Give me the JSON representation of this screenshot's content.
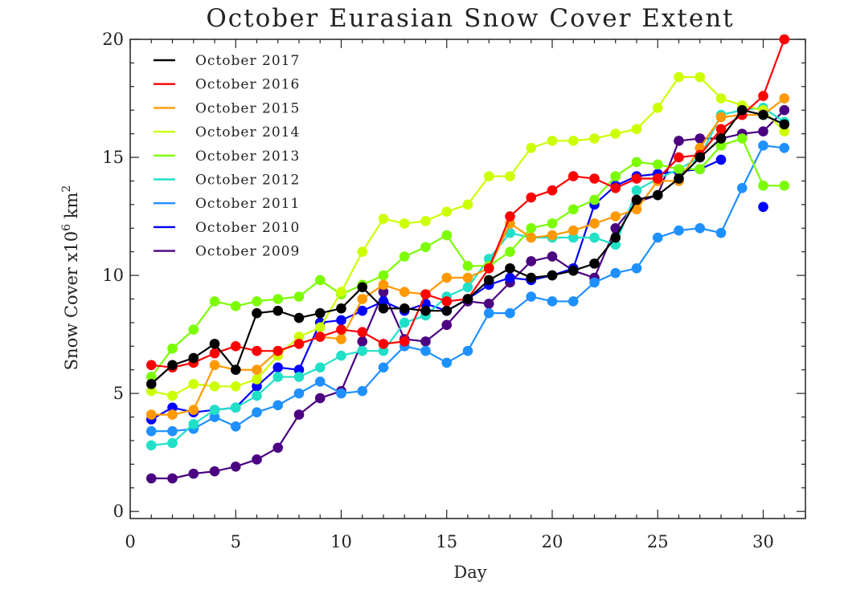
{
  "chart_data": {
    "type": "line",
    "title": "October Eurasian Snow Cover Extent",
    "xlabel": "Day",
    "ylabel_main": "Snow Cover x10",
    "ylabel_sup1": "6",
    "ylabel_unit": " km",
    "ylabel_sup2": "2",
    "xlim": [
      0,
      32
    ],
    "ylim": [
      -0.3,
      20
    ],
    "xticks": [
      0,
      5,
      10,
      15,
      20,
      25,
      30
    ],
    "yticks": [
      0,
      5,
      10,
      15,
      20
    ],
    "legend_position": "top-left",
    "x": [
      1,
      2,
      3,
      4,
      5,
      6,
      7,
      8,
      9,
      10,
      11,
      12,
      13,
      14,
      15,
      16,
      17,
      18,
      19,
      20,
      21,
      22,
      23,
      24,
      25,
      26,
      27,
      28,
      29,
      30,
      31
    ],
    "series": [
      {
        "name": "October 2009",
        "color": "#4b0082",
        "values": [
          1.4,
          1.4,
          1.6,
          1.7,
          1.9,
          2.2,
          2.7,
          4.1,
          4.8,
          5.1,
          7.2,
          9.3,
          7.3,
          7.2,
          7.9,
          8.9,
          8.8,
          9.7,
          10.6,
          10.8,
          10.2,
          9.9,
          12.0,
          13.1,
          13.4,
          15.7,
          15.8,
          15.8,
          16.0,
          16.1,
          17.0
        ]
      },
      {
        "name": "October 2010",
        "color": "#0000ff",
        "values": [
          3.9,
          4.4,
          4.2,
          4.3,
          4.4,
          5.3,
          6.1,
          6.0,
          8.0,
          8.1,
          8.5,
          8.9,
          8.5,
          8.8,
          8.5,
          9.0,
          9.6,
          9.9,
          9.8,
          10.0,
          10.3,
          13.0,
          13.8,
          14.2,
          14.3,
          14.4,
          14.5,
          14.9,
          null,
          12.9,
          null
        ]
      },
      {
        "name": "October 2011",
        "color": "#1e90ff",
        "values": [
          3.4,
          3.4,
          3.5,
          4.0,
          3.6,
          4.2,
          4.5,
          5.0,
          5.5,
          5.0,
          5.1,
          6.1,
          7.0,
          6.8,
          6.3,
          6.8,
          8.4,
          8.4,
          9.1,
          8.9,
          8.9,
          9.7,
          10.1,
          10.3,
          11.6,
          11.9,
          12.0,
          11.8,
          13.7,
          15.5,
          15.4
        ]
      },
      {
        "name": "October 2012",
        "color": "#20e0c8",
        "values": [
          2.8,
          2.9,
          3.7,
          4.3,
          4.4,
          4.9,
          5.7,
          5.7,
          6.1,
          6.6,
          6.8,
          6.8,
          8.0,
          8.3,
          9.1,
          9.5,
          10.7,
          11.8,
          11.6,
          11.6,
          11.6,
          11.6,
          11.3,
          13.6,
          14.1,
          14.5,
          15.0,
          16.8,
          17.0,
          17.1,
          16.5
        ]
      },
      {
        "name": "October 2013",
        "color": "#7cfc00",
        "values": [
          5.7,
          6.9,
          7.7,
          8.9,
          8.7,
          8.9,
          9.0,
          9.1,
          9.8,
          9.2,
          9.6,
          10.0,
          10.8,
          11.2,
          11.7,
          10.4,
          10.4,
          11.0,
          12.0,
          12.2,
          12.8,
          13.2,
          14.2,
          14.8,
          14.7,
          14.5,
          14.5,
          15.5,
          15.8,
          13.8,
          13.8
        ]
      },
      {
        "name": "October 2014",
        "color": "#ccff00",
        "values": [
          5.1,
          4.9,
          5.4,
          5.3,
          5.3,
          5.6,
          6.6,
          7.4,
          7.8,
          9.3,
          11.0,
          12.4,
          12.2,
          12.3,
          12.7,
          13.0,
          14.2,
          14.2,
          15.4,
          15.7,
          15.7,
          15.8,
          16.0,
          16.2,
          17.1,
          18.4,
          18.4,
          17.5,
          17.2,
          17.0,
          16.1
        ]
      },
      {
        "name": "October 2015",
        "color": "#ff9900",
        "values": [
          4.1,
          4.1,
          4.3,
          6.2,
          6.0,
          6.0,
          6.8,
          7.1,
          7.4,
          7.3,
          9.0,
          9.6,
          9.3,
          9.2,
          9.9,
          9.9,
          10.3,
          12.2,
          11.6,
          11.7,
          11.9,
          12.2,
          12.5,
          12.8,
          14.0,
          14.0,
          15.4,
          16.7,
          16.8,
          16.8,
          17.5
        ]
      },
      {
        "name": "October 2016",
        "color": "#ff0000",
        "values": [
          6.2,
          6.1,
          6.3,
          6.7,
          7.0,
          6.8,
          6.8,
          7.1,
          7.4,
          7.7,
          7.6,
          7.1,
          7.2,
          9.2,
          8.9,
          9.0,
          10.3,
          12.5,
          13.3,
          13.6,
          14.2,
          14.1,
          13.7,
          14.1,
          14.1,
          15.0,
          15.1,
          16.2,
          16.8,
          17.6,
          20.0
        ]
      },
      {
        "name": "October 2017",
        "color": "#000000",
        "values": [
          5.4,
          6.2,
          6.5,
          7.1,
          6.0,
          8.4,
          8.5,
          8.2,
          8.4,
          8.6,
          9.5,
          8.6,
          8.6,
          8.5,
          8.5,
          9.0,
          9.8,
          10.3,
          9.9,
          10.0,
          10.2,
          10.5,
          11.6,
          13.2,
          13.4,
          14.1,
          15.0,
          15.8,
          17.0,
          16.8,
          16.4
        ]
      }
    ],
    "legend_order": [
      "October 2017",
      "October 2016",
      "October 2015",
      "October 2014",
      "October 2013",
      "October 2012",
      "October 2011",
      "October 2010",
      "October 2009"
    ],
    "draw_order": [
      "October 2009",
      "October 2010",
      "October 2011",
      "October 2012",
      "October 2013",
      "October 2014",
      "October 2015",
      "October 2016",
      "October 2017"
    ]
  }
}
